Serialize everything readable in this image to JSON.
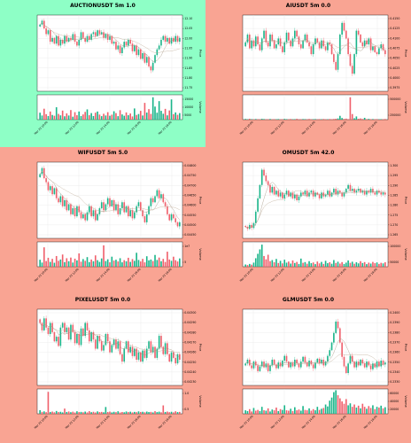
{
  "chart_data": [
    {
      "type": "candlestick",
      "title": "AUCTIONUSDT 5m 1.0",
      "background": "#8effc6",
      "ylabel_price": "Price",
      "ylabel_volume": "Volume",
      "price_ticks": [
        "12.10",
        "12.05",
        "12.00",
        "11.95",
        "11.90",
        "11.85",
        "11.80",
        "11.75"
      ],
      "ylim": [
        11.73,
        12.13
      ],
      "volume_ticks": [
        "15000",
        "10000",
        "5000"
      ],
      "volume_max": 18000,
      "xticks": [
        "Mar 25 10:00",
        "Mar 25 12:00",
        "Mar 25 14:00",
        "Mar 25 16:00",
        "Mar 25 18:00"
      ],
      "closes": [
        12.08,
        12.1,
        12.06,
        12.03,
        12.05,
        11.99,
        12.01,
        11.98,
        12.02,
        11.97,
        12.0,
        11.98,
        12.02,
        11.99,
        12.01,
        12.0,
        12.03,
        11.99,
        11.97,
        12.0,
        12.04,
        12.01,
        11.99,
        12.02,
        12.0,
        12.03,
        12.04,
        12.02,
        12.05,
        12.03,
        12.04,
        12.01,
        12.03,
        12.0,
        12.02,
        11.98,
        11.99,
        11.95,
        11.97,
        11.93,
        11.96,
        11.99,
        11.97,
        12.0,
        11.98,
        11.94,
        11.97,
        11.92,
        11.95,
        11.9,
        11.93,
        11.88,
        11.91,
        11.86,
        11.84,
        11.88,
        11.92,
        11.95,
        11.97,
        12.0,
        12.02,
        11.99,
        12.01,
        11.98,
        12.01,
        11.99,
        12.02,
        11.99,
        12.01
      ],
      "volumes": [
        5200,
        3100,
        8200,
        4100,
        2700,
        6100,
        3500,
        2900,
        9300,
        4300,
        3200,
        6800,
        2500,
        4700,
        3100,
        7200,
        2200,
        5600,
        3300,
        6100,
        2700,
        3900,
        5800,
        7700,
        3300,
        4900,
        2700,
        5200,
        6100,
        3800,
        2600,
        4400,
        3100,
        5600,
        2900,
        3700,
        6300,
        4900,
        2600,
        7100,
        3900,
        2900,
        5400,
        3300,
        4600,
        2400,
        8400,
        3500,
        4200,
        6600,
        3100,
        12600,
        5300,
        7900,
        4300,
        16800,
        9800,
        5200,
        13900,
        6600,
        4400,
        8100,
        3200,
        6900,
        15200,
        4100,
        5400,
        3600,
        4900
      ]
    },
    {
      "type": "candlestick",
      "title": "AIUSDT 5m 0.0",
      "background": "#f9a493",
      "ylabel_price": "Price",
      "ylabel_volume": "Volume",
      "price_ticks": [
        "0.4150",
        "0.4125",
        "0.4100",
        "0.4075",
        "0.4050",
        "0.4025",
        "0.4000",
        "0.3975"
      ],
      "ylim": [
        0.3965,
        0.416
      ],
      "volume_ticks": [
        "500000",
        "250000"
      ],
      "volume_max": 600000,
      "xticks": [
        "Mar 25 10:00",
        "Mar 25 12:00",
        "Mar 25 14:00",
        "Mar 25 16:00",
        "Mar 25 18:00"
      ],
      "closes": [
        0.409,
        0.411,
        0.4075,
        0.4095,
        0.408,
        0.4105,
        0.4085,
        0.407,
        0.41,
        0.412,
        0.409,
        0.408,
        0.411,
        0.4095,
        0.4075,
        0.4085,
        0.41,
        0.408,
        0.4065,
        0.409,
        0.4115,
        0.4095,
        0.408,
        0.41,
        0.412,
        0.4105,
        0.4085,
        0.4075,
        0.4095,
        0.411,
        0.409,
        0.408,
        0.406,
        0.4085,
        0.41,
        0.409,
        0.4075,
        0.4095,
        0.408,
        0.407,
        0.409,
        0.4085,
        0.406,
        0.404,
        0.402,
        0.406,
        0.411,
        0.414,
        0.412,
        0.41,
        0.406,
        0.403,
        0.401,
        0.406,
        0.412,
        0.411,
        0.409,
        0.408,
        0.4095,
        0.4085,
        0.41,
        0.407,
        0.408,
        0.4065,
        0.406,
        0.4075,
        0.4085,
        0.407,
        0.406
      ],
      "volumes": [
        18000,
        9000,
        22000,
        12000,
        7000,
        15000,
        10000,
        8000,
        20000,
        14000,
        9000,
        11000,
        16000,
        8000,
        12000,
        9000,
        14000,
        7000,
        10000,
        18000,
        12000,
        9000,
        15000,
        8000,
        11000,
        20000,
        10000,
        9000,
        14000,
        12000,
        8000,
        16000,
        9000,
        11000,
        13000,
        7000,
        12000,
        10000,
        15000,
        9000,
        8000,
        14000,
        11000,
        16000,
        22000,
        30000,
        95000,
        40000,
        18000,
        25000,
        12000,
        560000,
        140000,
        35000,
        80000,
        22000,
        30000,
        16000,
        45000,
        12000,
        18000,
        10000,
        14000,
        9000,
        12000,
        8000,
        11000,
        9000,
        15000
      ]
    },
    {
      "type": "candlestick",
      "title": "WIFUSDT 5m 5.0",
      "background": "#f9a493",
      "ylabel_price": "Price",
      "ylabel_volume": "Volume",
      "price_ticks": [
        "0.04800",
        "0.04750",
        "0.04700",
        "0.04650",
        "0.04600",
        "0.04550",
        "0.04500",
        "0.04450"
      ],
      "ylim": [
        0.0444,
        0.0482
      ],
      "volume_ticks": [
        "1e7",
        "5"
      ],
      "volume_max": 11000000,
      "xticks": [
        "Mar 25 10:00",
        "Mar 25 12:00",
        "Mar 25 14:00",
        "Mar 25 16:00",
        "Mar 25 18:00"
      ],
      "closes": [
        0.0476,
        0.0479,
        0.0474,
        0.0472,
        0.0468,
        0.047,
        0.0466,
        0.0469,
        0.0464,
        0.0462,
        0.0465,
        0.046,
        0.0463,
        0.0458,
        0.0461,
        0.0456,
        0.0459,
        0.0455,
        0.046,
        0.0457,
        0.0454,
        0.0456,
        0.0453,
        0.0457,
        0.046,
        0.0455,
        0.0458,
        0.0453,
        0.0456,
        0.0459,
        0.0462,
        0.0458,
        0.0461,
        0.0464,
        0.046,
        0.0463,
        0.0458,
        0.0461,
        0.0456,
        0.0459,
        0.0462,
        0.0457,
        0.046,
        0.0455,
        0.0458,
        0.0454,
        0.0457,
        0.046,
        0.0462,
        0.0458,
        0.0455,
        0.0452,
        0.0456,
        0.046,
        0.0464,
        0.0462,
        0.0465,
        0.0468,
        0.0464,
        0.0466,
        0.0462,
        0.046,
        0.0456,
        0.0453,
        0.0456,
        0.0454,
        0.0452,
        0.045,
        0.0452
      ],
      "volumes": [
        3200000,
        1900000,
        8900000,
        2600000,
        4100000,
        2200000,
        3600000,
        1800000,
        4900000,
        2700000,
        3300000,
        5600000,
        2100000,
        3900000,
        2500000,
        4200000,
        1900000,
        3700000,
        2900000,
        6100000,
        2300000,
        3500000,
        2700000,
        4400000,
        2100000,
        3300000,
        2500000,
        5200000,
        3000000,
        2200000,
        3800000,
        9800000,
        2600000,
        3400000,
        2000000,
        4600000,
        2800000,
        3200000,
        2400000,
        3900000,
        2000000,
        3000000,
        2500000,
        4100000,
        2200000,
        3500000,
        2700000,
        6400000,
        3100000,
        2400000,
        3600000,
        2000000,
        4800000,
        2900000,
        3300000,
        2600000,
        5400000,
        3100000,
        4200000,
        2500000,
        3600000,
        2200000,
        6900000,
        3300000,
        2700000,
        4600000,
        3000000,
        2400000,
        3800000
      ]
    },
    {
      "type": "candlestick",
      "title": "OMUSDT 5m 42.0",
      "background": "#f9a493",
      "ylabel_price": "Price",
      "ylabel_volume": "Volume",
      "price_ticks": [
        "1.300",
        "1.295",
        "1.290",
        "1.285",
        "1.280",
        "1.275",
        "1.270",
        "1.265"
      ],
      "ylim": [
        1.262,
        1.302
      ],
      "volume_ticks": [
        "100000",
        "50000"
      ],
      "volume_max": 130000,
      "xticks": [
        "Mar 25 10:00",
        "Mar 25 12:00",
        "Mar 25 14:00",
        "Mar 25 16:00",
        "Mar 25 18:00"
      ],
      "closes": [
        1.268,
        1.267,
        1.269,
        1.2675,
        1.27,
        1.276,
        1.283,
        1.29,
        1.298,
        1.295,
        1.292,
        1.29,
        1.286,
        1.289,
        1.285,
        1.287,
        1.284,
        1.286,
        1.283,
        1.285,
        1.287,
        1.284,
        1.286,
        1.283,
        1.285,
        1.282,
        1.284,
        1.286,
        1.285,
        1.287,
        1.284,
        1.286,
        1.287,
        1.284,
        1.286,
        1.285,
        1.283,
        1.286,
        1.284,
        1.285,
        1.287,
        1.284,
        1.286,
        1.288,
        1.285,
        1.287,
        1.286,
        1.284,
        1.286,
        1.288,
        1.29,
        1.287,
        1.288,
        1.286,
        1.287,
        1.288,
        1.286,
        1.287,
        1.285,
        1.287,
        1.286,
        1.288,
        1.286,
        1.285,
        1.287,
        1.286,
        1.285,
        1.286,
        1.285
      ],
      "volumes": [
        12000,
        9000,
        15000,
        11000,
        22000,
        46000,
        70000,
        94000,
        120000,
        58000,
        40000,
        65000,
        30000,
        36000,
        24000,
        42000,
        20000,
        32000,
        18000,
        38000,
        22000,
        28000,
        17000,
        34000,
        20000,
        26000,
        15000,
        44000,
        21000,
        25000,
        16000,
        30000,
        19000,
        23000,
        14000,
        28000,
        18000,
        26000,
        15000,
        32000,
        19000,
        24000,
        16000,
        36000,
        20000,
        27000,
        17000,
        25000,
        15000,
        22000,
        34000,
        21000,
        27000,
        16000,
        24000,
        18000,
        30000,
        20000,
        25000,
        14000,
        22000,
        17000,
        26000,
        19000,
        23000,
        15000,
        21000,
        18000,
        24000
      ]
    },
    {
      "type": "candlestick",
      "title": "PIXELUSDT 5m 0.0",
      "background": "#f9a493",
      "ylabel_price": "Price",
      "ylabel_volume": "Volume",
      "price_ticks": [
        "0.04300",
        "0.04290",
        "0.04280",
        "0.04270",
        "0.04260",
        "0.04250",
        "0.04240",
        "0.04230"
      ],
      "ylim": [
        0.04222,
        0.04305
      ],
      "volume_ticks": [
        "1.0",
        "0.5"
      ],
      "volume_max": 1200000,
      "xticks": [
        "Mar 25 10:00",
        "Mar 25 12:00",
        "Mar 25 14:00",
        "Mar 25 16:00",
        "Mar 25 18:00"
      ],
      "closes": [
        0.0429,
        0.04282,
        0.04295,
        0.04285,
        0.04278,
        0.0429,
        0.0428,
        0.0427,
        0.04275,
        0.04265,
        0.04285,
        0.0429,
        0.0428,
        0.04285,
        0.04272,
        0.04288,
        0.0428,
        0.04268,
        0.04278,
        0.04266,
        0.04284,
        0.04276,
        0.0429,
        0.04282,
        0.0427,
        0.0428,
        0.04272,
        0.04262,
        0.04276,
        0.0427,
        0.0426,
        0.04266,
        0.04278,
        0.0427,
        0.04258,
        0.04266,
        0.04272,
        0.04262,
        0.0427,
        0.04256,
        0.04248,
        0.04262,
        0.0427,
        0.04258,
        0.04264,
        0.04254,
        0.04262,
        0.0425,
        0.04258,
        0.04248,
        0.0426,
        0.04252,
        0.04262,
        0.0427,
        0.04258,
        0.04264,
        0.04252,
        0.04262,
        0.04276,
        0.04264,
        0.04256,
        0.04268,
        0.04256,
        0.04248,
        0.04258,
        0.04252,
        0.04246,
        0.04256,
        0.0425
      ],
      "volumes": [
        180000,
        95000,
        120000,
        80000,
        1100000,
        90000,
        110000,
        75000,
        140000,
        85000,
        100000,
        70000,
        260000,
        90000,
        115000,
        80000,
        105000,
        65000,
        125000,
        85000,
        95000,
        75000,
        110000,
        70000,
        130000,
        80000,
        100000,
        65000,
        120000,
        85000,
        95000,
        75000,
        340000,
        90000,
        110000,
        70000,
        100000,
        80000,
        125000,
        65000,
        90000,
        75000,
        115000,
        85000,
        105000,
        70000,
        95000,
        80000,
        120000,
        90000,
        100000,
        75000,
        110000,
        85000,
        95000,
        70000,
        130000,
        85000,
        105000,
        75000,
        420000,
        90000,
        110000,
        80000,
        100000,
        70000,
        125000,
        85000,
        95000
      ]
    },
    {
      "type": "candlestick",
      "title": "GLMUSDT 5m 0.0",
      "background": "#f9a493",
      "ylabel_price": "Price",
      "ylabel_volume": "Volume",
      "price_ticks": [
        "0.2400",
        "0.2390",
        "0.2380",
        "0.2370",
        "0.2360",
        "0.2350",
        "0.2340",
        "0.2330"
      ],
      "ylim": [
        0.2325,
        0.2405
      ],
      "volume_ticks": [
        "60000",
        "40000",
        "20000"
      ],
      "volume_max": 62000,
      "xticks": [
        "Mar 25 10:00",
        "Mar 25 12:00",
        "Mar 25 14:00",
        "Mar 25 16:00",
        "Mar 25 18:00"
      ],
      "closes": [
        0.2348,
        0.2352,
        0.2346,
        0.2343,
        0.235,
        0.2346,
        0.234,
        0.2345,
        0.235,
        0.2344,
        0.2348,
        0.234,
        0.2346,
        0.2352,
        0.2347,
        0.2343,
        0.2349,
        0.2345,
        0.2351,
        0.2356,
        0.235,
        0.2344,
        0.2349,
        0.2345,
        0.2352,
        0.2348,
        0.2344,
        0.235,
        0.2355,
        0.2349,
        0.2345,
        0.2351,
        0.2347,
        0.2343,
        0.2349,
        0.2353,
        0.2348,
        0.2352,
        0.2346,
        0.235,
        0.2356,
        0.2362,
        0.237,
        0.238,
        0.2392,
        0.2385,
        0.237,
        0.2355,
        0.2345,
        0.2338,
        0.2348,
        0.2356,
        0.235,
        0.2344,
        0.235,
        0.2346,
        0.2352,
        0.2348,
        0.2344,
        0.235,
        0.2346,
        0.2342,
        0.2348,
        0.2344,
        0.235,
        0.2345,
        0.2351,
        0.2347,
        0.2349
      ],
      "volumes": [
        9000,
        7000,
        12000,
        6000,
        15000,
        8000,
        10000,
        7000,
        18000,
        9000,
        8000,
        14000,
        6000,
        11000,
        9000,
        16000,
        7000,
        12000,
        10000,
        22000,
        9000,
        8000,
        13000,
        7000,
        17000,
        9000,
        11000,
        8000,
        20000,
        10000,
        9000,
        14000,
        8000,
        12000,
        9000,
        18000,
        10000,
        13000,
        15000,
        24000,
        19000,
        34000,
        42000,
        56000,
        61000,
        48000,
        40000,
        32000,
        26000,
        38000,
        22000,
        27000,
        18000,
        24000,
        16000,
        21000,
        14000,
        26000,
        18000,
        13000,
        20000,
        15000,
        22000,
        12000,
        18000,
        16000,
        21000,
        14000,
        17000
      ]
    }
  ]
}
